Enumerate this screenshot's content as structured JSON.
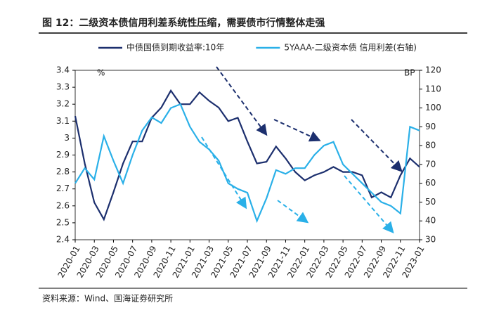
{
  "chart_data": {
    "type": "line",
    "title": "图 12：二级资本债信用利差系统性压缩，需要债市行情整体走强",
    "source": "资料来源：Wind、国海证券研究所",
    "y_unit": "%",
    "y2_unit": "BP",
    "categories": [
      "2020-01",
      null,
      "2020-03",
      null,
      "2020-05",
      null,
      "2020-07",
      null,
      "2020-09",
      null,
      "2020-11",
      null,
      "2021-01",
      null,
      "2021-03",
      null,
      "2021-05",
      null,
      "2021-07",
      null,
      "2021-09",
      null,
      "2021-11",
      null,
      "2022-01",
      null,
      "2022-03",
      null,
      "2022-05",
      null,
      "2022-07",
      null,
      "2022-09",
      null,
      "2022-11",
      null,
      "2023-01"
    ],
    "series": [
      {
        "name": "中债国债到期收益率:10年",
        "color": "#1c2f6e",
        "axis": "y",
        "values": [
          3.13,
          2.85,
          2.62,
          2.52,
          2.68,
          2.85,
          2.98,
          2.98,
          3.12,
          3.18,
          3.28,
          3.2,
          3.2,
          3.27,
          3.22,
          3.18,
          3.1,
          3.12,
          2.98,
          2.85,
          2.86,
          2.95,
          2.88,
          2.8,
          2.75,
          2.78,
          2.8,
          2.83,
          2.8,
          2.8,
          2.78,
          2.65,
          2.68,
          2.65,
          2.78,
          2.88,
          2.83
        ]
      },
      {
        "name": "5YAAA-二级资本债 信用利差(右轴)",
        "color": "#2ab0e8",
        "axis": "y2",
        "values": [
          60,
          68,
          62,
          85,
          72,
          60,
          75,
          88,
          95,
          92,
          100,
          102,
          90,
          82,
          78,
          72,
          60,
          57,
          55,
          40,
          52,
          67,
          65,
          68,
          68,
          75,
          80,
          82,
          70,
          65,
          60,
          55,
          50,
          48,
          44,
          90,
          88
        ]
      }
    ],
    "ylim": [
      2.4,
      3.4
    ],
    "yticks": [
      2.4,
      2.5,
      2.6,
      2.7,
      2.8,
      2.9,
      3,
      3.1,
      3.2,
      3.3,
      3.4
    ],
    "y2lim": [
      30,
      120
    ],
    "y2ticks": [
      30,
      40,
      50,
      60,
      70,
      80,
      90,
      100,
      110,
      120
    ],
    "legend": "top"
  }
}
